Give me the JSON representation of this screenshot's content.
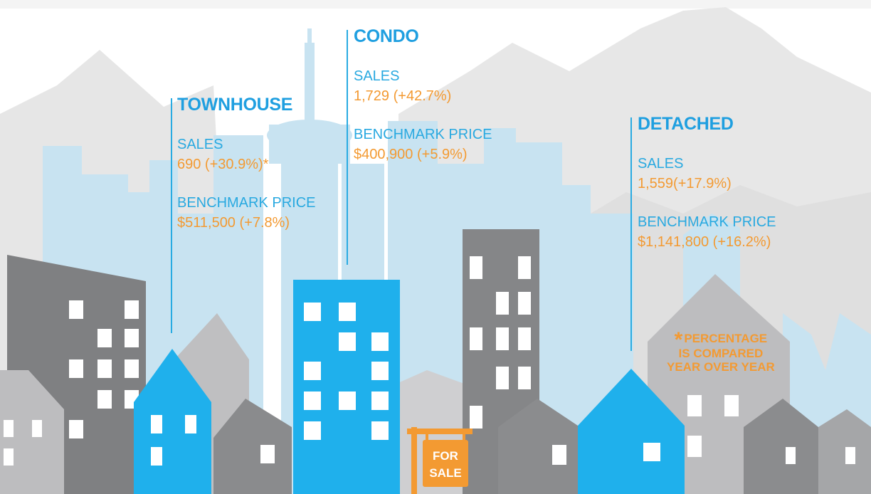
{
  "stats": {
    "townhouse": {
      "title": "TOWNHOUSE",
      "sales_label": "SALES",
      "sales_value": "690 (+30.9%)*",
      "price_label": "BENCHMARK PRICE",
      "price_value": "$511,500 (+7.8%)"
    },
    "condo": {
      "title": "CONDO",
      "sales_label": "SALES",
      "sales_value": "1,729 (+42.7%)",
      "price_label": "BENCHMARK PRICE",
      "price_value": "$400,900 (+5.9%)"
    },
    "detached": {
      "title": "DETACHED",
      "sales_label": "SALES",
      "sales_value": "1,559(+17.9%)",
      "price_label": "BENCHMARK PRICE",
      "price_value": "$1,141,800 (+16.2%)"
    }
  },
  "note": {
    "star": "*",
    "line1": "PERCENTAGE",
    "line2": "IS COMPARED",
    "line3": "YEAR OVER YEAR"
  },
  "sign": {
    "line1": "FOR",
    "line2": "SALE"
  },
  "colors": {
    "blue": "#1fb0ec",
    "orange": "#f39a32",
    "dark_gray": "#8b8c8e",
    "light_gray": "#bdbdbf"
  }
}
